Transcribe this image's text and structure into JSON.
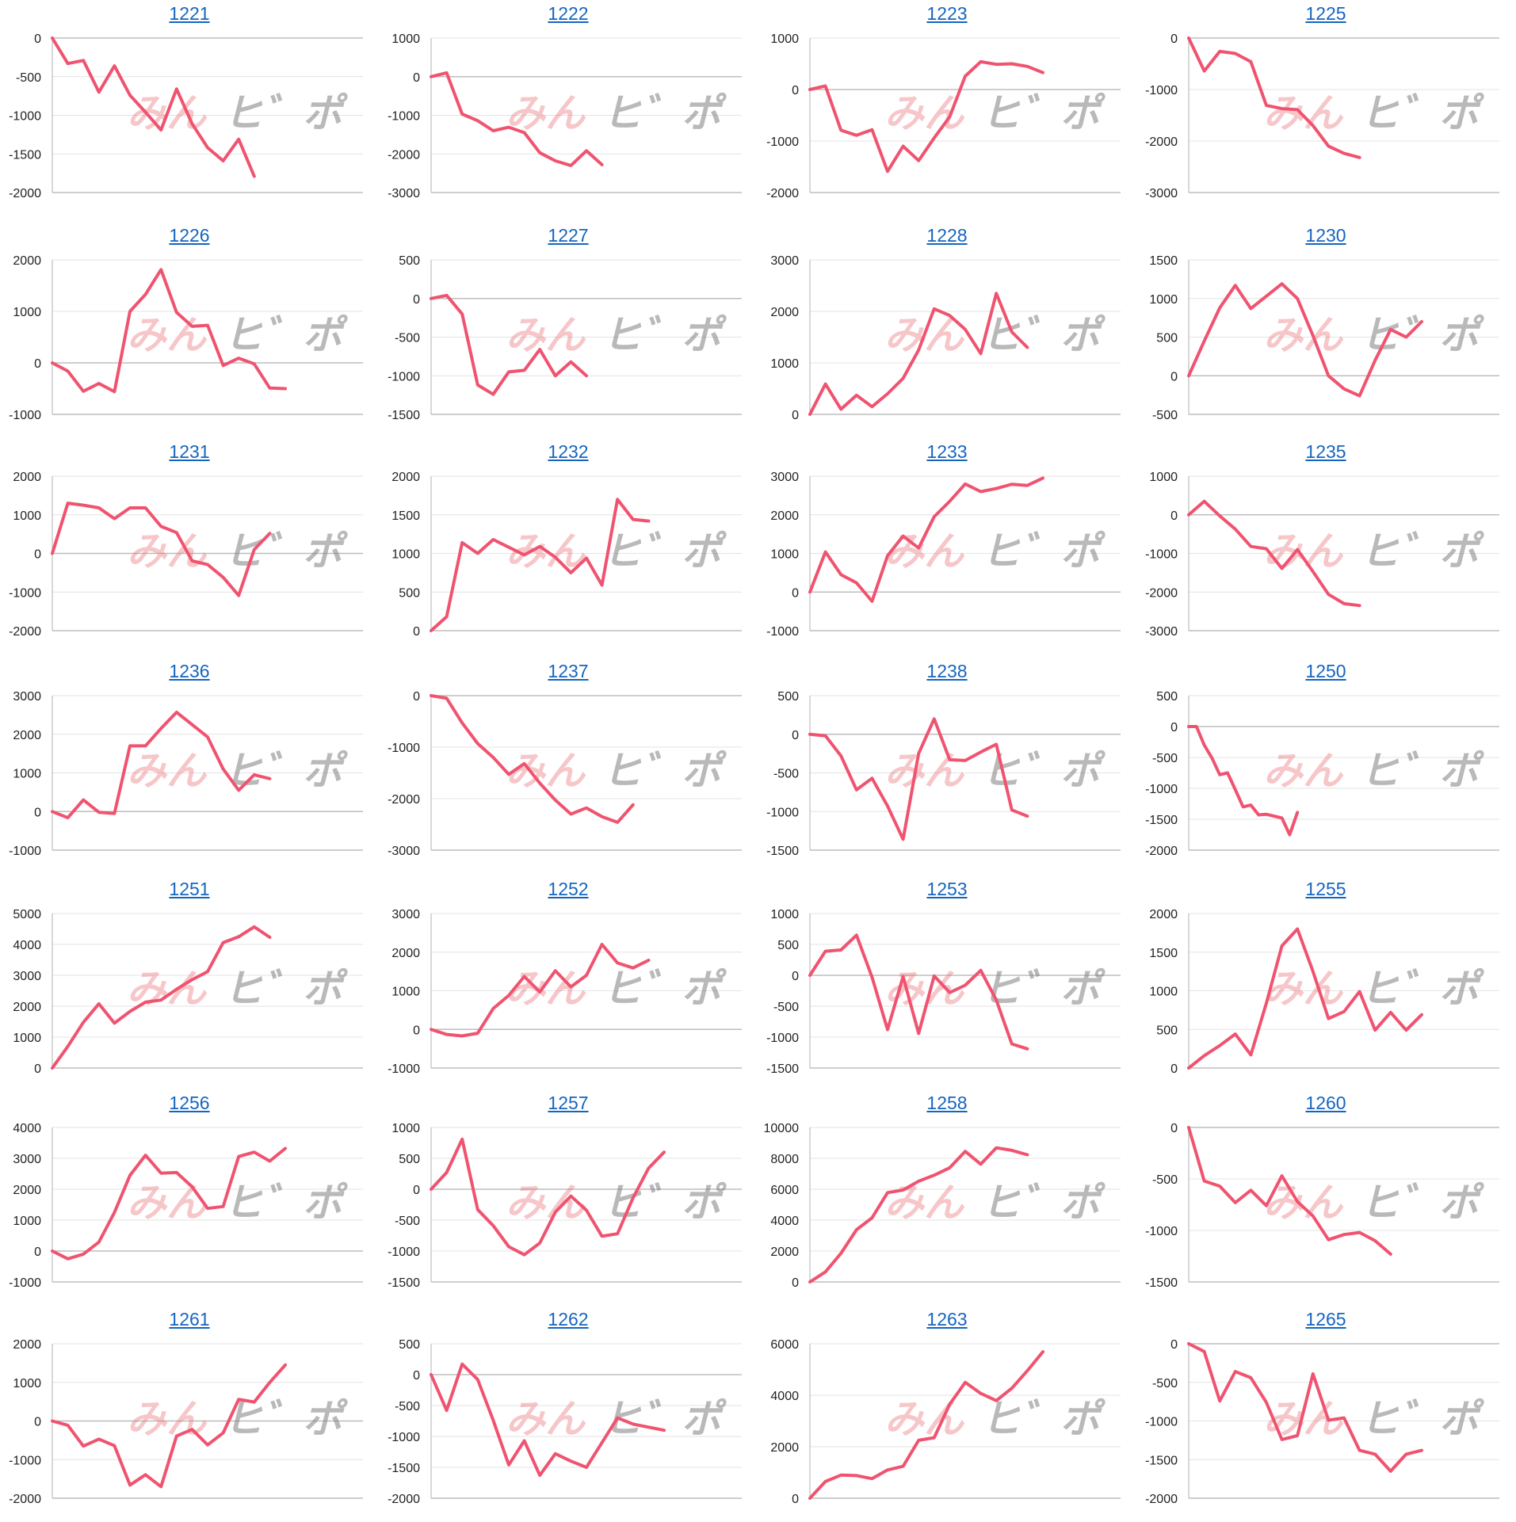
{
  "colors": {
    "line": "#f0536f",
    "grid": "#e3e3e3",
    "axis": "#bdbdbd",
    "link": "#1565c0",
    "wm1": "rgba(231,104,112,0.38)",
    "wm2": "rgba(128,128,128,0.55)"
  },
  "watermark": {
    "part1": "みん",
    "part2": "ヒ゛ポ"
  },
  "chart_data": [
    {
      "title": "1221",
      "type": "line",
      "ylim": [
        -2000,
        0
      ],
      "yticks": [
        0,
        -500,
        -1000,
        -1500,
        -2000
      ],
      "x_max": 20,
      "values": [
        0,
        -330,
        -290,
        -700,
        -360,
        -740,
        -960,
        -1190,
        -660,
        -1110,
        -1420,
        -1590,
        -1310,
        -1790
      ]
    },
    {
      "title": "1222",
      "type": "line",
      "ylim": [
        -3000,
        1000
      ],
      "yticks": [
        1000,
        0,
        -1000,
        -2000,
        -3000
      ],
      "x_max": 20,
      "values": [
        0,
        100,
        -970,
        -1140,
        -1400,
        -1310,
        -1450,
        -1970,
        -2180,
        -2300,
        -1920,
        -2280
      ]
    },
    {
      "title": "1223",
      "type": "line",
      "ylim": [
        -2000,
        1000
      ],
      "yticks": [
        1000,
        0,
        -1000,
        -2000
      ],
      "x_max": 20,
      "values": [
        0,
        70,
        -790,
        -890,
        -780,
        -1590,
        -1100,
        -1380,
        -940,
        -530,
        260,
        540,
        490,
        500,
        450,
        330
      ]
    },
    {
      "title": "1225",
      "type": "line",
      "ylim": [
        -3000,
        0
      ],
      "yticks": [
        0,
        -1000,
        -2000,
        -3000
      ],
      "x_max": 20,
      "values": [
        0,
        -640,
        -260,
        -300,
        -460,
        -1310,
        -1370,
        -1390,
        -1700,
        -2100,
        -2240,
        -2320
      ]
    },
    {
      "title": "1226",
      "type": "line",
      "ylim": [
        -1000,
        2000
      ],
      "yticks": [
        2000,
        1000,
        0,
        -1000
      ],
      "x_max": 20,
      "values": [
        0,
        -160,
        -550,
        -400,
        -560,
        1000,
        1330,
        1810,
        980,
        710,
        730,
        -50,
        90,
        -20,
        -490,
        -500
      ]
    },
    {
      "title": "1227",
      "type": "line",
      "ylim": [
        -1500,
        500
      ],
      "yticks": [
        500,
        0,
        -500,
        -1000,
        -1500
      ],
      "x_max": 20,
      "values": [
        0,
        40,
        -200,
        -1120,
        -1240,
        -950,
        -930,
        -660,
        -1000,
        -820,
        -1000
      ]
    },
    {
      "title": "1228",
      "type": "line",
      "ylim": [
        0,
        3000
      ],
      "yticks": [
        3000,
        2000,
        1000,
        0
      ],
      "x_max": 20,
      "values": [
        0,
        590,
        100,
        370,
        150,
        400,
        700,
        1250,
        2050,
        1920,
        1650,
        1180,
        2350,
        1600,
        1300
      ]
    },
    {
      "title": "1230",
      "type": "line",
      "ylim": [
        -500,
        1500
      ],
      "yticks": [
        1500,
        1000,
        500,
        0,
        -500
      ],
      "x_max": 20,
      "values": [
        0,
        450,
        880,
        1170,
        870,
        1030,
        1190,
        1000,
        520,
        0,
        -170,
        -260,
        200,
        600,
        500,
        700
      ]
    },
    {
      "title": "1231",
      "type": "line",
      "ylim": [
        -2000,
        2000
      ],
      "yticks": [
        2000,
        1000,
        0,
        -1000,
        -2000
      ],
      "x_max": 20,
      "values": [
        0,
        1300,
        1250,
        1180,
        900,
        1180,
        1180,
        700,
        540,
        -190,
        -290,
        -620,
        -1090,
        100,
        520
      ]
    },
    {
      "title": "1232",
      "type": "line",
      "ylim": [
        0,
        2000
      ],
      "yticks": [
        2000,
        1500,
        1000,
        500,
        0
      ],
      "x_max": 20,
      "values": [
        0,
        180,
        1140,
        1000,
        1180,
        1080,
        980,
        1090,
        950,
        750,
        940,
        590,
        1700,
        1440,
        1420
      ]
    },
    {
      "title": "1233",
      "type": "line",
      "ylim": [
        -1000,
        3000
      ],
      "yticks": [
        3000,
        2000,
        1000,
        0,
        -1000
      ],
      "x_max": 20,
      "values": [
        0,
        1040,
        450,
        240,
        -240,
        940,
        1450,
        1140,
        1950,
        2350,
        2800,
        2600,
        2680,
        2790,
        2760,
        2950
      ]
    },
    {
      "title": "1235",
      "type": "line",
      "ylim": [
        -3000,
        1000
      ],
      "yticks": [
        1000,
        0,
        -1000,
        -2000,
        -3000
      ],
      "x_max": 20,
      "values": [
        0,
        350,
        -30,
        -370,
        -820,
        -880,
        -1390,
        -900,
        -1470,
        -2060,
        -2300,
        -2350
      ]
    },
    {
      "title": "1236",
      "type": "line",
      "ylim": [
        -1000,
        3000
      ],
      "yticks": [
        3000,
        2000,
        1000,
        0,
        -1000
      ],
      "x_max": 20,
      "values": [
        0,
        -160,
        300,
        -20,
        -50,
        1700,
        1700,
        2150,
        2570,
        2250,
        1930,
        1100,
        550,
        950,
        850
      ]
    },
    {
      "title": "1237",
      "type": "line",
      "ylim": [
        -3000,
        0
      ],
      "yticks": [
        0,
        -1000,
        -2000,
        -3000
      ],
      "x_max": 20,
      "values": [
        0,
        -50,
        -530,
        -930,
        -1200,
        -1530,
        -1320,
        -1700,
        -2030,
        -2300,
        -2180,
        -2350,
        -2460,
        -2120
      ]
    },
    {
      "title": "1238",
      "type": "line",
      "ylim": [
        -1500,
        500
      ],
      "yticks": [
        500,
        0,
        -500,
        -1000,
        -1500
      ],
      "x_max": 20,
      "values": [
        0,
        -20,
        -280,
        -720,
        -570,
        -930,
        -1360,
        -250,
        200,
        -330,
        -340,
        -230,
        -130,
        -980,
        -1060
      ]
    },
    {
      "title": "1250",
      "type": "line",
      "ylim": [
        -2000,
        500
      ],
      "yticks": [
        500,
        0,
        -500,
        -1000,
        -1500,
        -2000
      ],
      "x_max": 40,
      "values": [
        0,
        0,
        -300,
        -510,
        -780,
        -750,
        -1020,
        -1300,
        -1270,
        -1430,
        -1420,
        -1450,
        -1480,
        -1750,
        -1390
      ]
    },
    {
      "title": "1251",
      "type": "line",
      "ylim": [
        0,
        5000
      ],
      "yticks": [
        5000,
        4000,
        3000,
        2000,
        1000,
        0
      ],
      "x_max": 20,
      "values": [
        0,
        700,
        1480,
        2080,
        1450,
        1830,
        2130,
        2200,
        2550,
        2860,
        3120,
        4060,
        4250,
        4570,
        4230
      ]
    },
    {
      "title": "1252",
      "type": "line",
      "ylim": [
        -1000,
        3000
      ],
      "yticks": [
        3000,
        2000,
        1000,
        0,
        -1000
      ],
      "x_max": 20,
      "values": [
        0,
        -130,
        -170,
        -100,
        540,
        880,
        1370,
        970,
        1520,
        1100,
        1400,
        2200,
        1720,
        1590,
        1790
      ]
    },
    {
      "title": "1253",
      "type": "line",
      "ylim": [
        -1500,
        1000
      ],
      "yticks": [
        1000,
        500,
        0,
        -500,
        -1000,
        -1500
      ],
      "x_max": 20,
      "values": [
        0,
        390,
        410,
        650,
        -30,
        -880,
        -20,
        -940,
        -10,
        -280,
        -160,
        80,
        -400,
        -1110,
        -1190
      ]
    },
    {
      "title": "1255",
      "type": "line",
      "ylim": [
        0,
        2000
      ],
      "yticks": [
        2000,
        1500,
        1000,
        500,
        0
      ],
      "x_max": 20,
      "values": [
        0,
        160,
        290,
        440,
        170,
        840,
        1580,
        1800,
        1250,
        640,
        730,
        990,
        490,
        720,
        490,
        690
      ]
    },
    {
      "title": "1256",
      "type": "line",
      "ylim": [
        -1000,
        4000
      ],
      "yticks": [
        4000,
        3000,
        2000,
        1000,
        0,
        -1000
      ],
      "x_max": 20,
      "values": [
        0,
        -250,
        -100,
        290,
        1250,
        2450,
        3100,
        2520,
        2540,
        2080,
        1380,
        1440,
        3060,
        3200,
        2910,
        3320
      ]
    },
    {
      "title": "1257",
      "type": "line",
      "ylim": [
        -1500,
        1000
      ],
      "yticks": [
        1000,
        500,
        0,
        -500,
        -1000,
        -1500
      ],
      "x_max": 20,
      "values": [
        0,
        270,
        810,
        -330,
        -590,
        -930,
        -1060,
        -870,
        -370,
        -110,
        -340,
        -760,
        -720,
        -140,
        340,
        600
      ]
    },
    {
      "title": "1258",
      "type": "line",
      "ylim": [
        0,
        10000
      ],
      "yticks": [
        10000,
        8000,
        6000,
        4000,
        2000,
        0
      ],
      "x_max": 20,
      "values": [
        0,
        650,
        1850,
        3380,
        4150,
        5780,
        5950,
        6520,
        6910,
        7390,
        8450,
        7620,
        8680,
        8520,
        8230
      ]
    },
    {
      "title": "1260",
      "type": "line",
      "ylim": [
        -1500,
        0
      ],
      "yticks": [
        0,
        -500,
        -1000,
        -1500
      ],
      "x_max": 20,
      "values": [
        0,
        -520,
        -570,
        -730,
        -610,
        -760,
        -470,
        -720,
        -860,
        -1090,
        -1040,
        -1020,
        -1100,
        -1230
      ]
    },
    {
      "title": "1261",
      "type": "line",
      "ylim": [
        -2000,
        2000
      ],
      "yticks": [
        2000,
        1000,
        0,
        -1000,
        -2000
      ],
      "x_max": 20,
      "values": [
        0,
        -110,
        -650,
        -470,
        -640,
        -1660,
        -1390,
        -1700,
        -390,
        -220,
        -620,
        -310,
        560,
        490,
        1000,
        1450
      ]
    },
    {
      "title": "1262",
      "type": "line",
      "ylim": [
        -2000,
        500
      ],
      "yticks": [
        500,
        0,
        -500,
        -1000,
        -1500,
        -2000
      ],
      "x_max": 20,
      "values": [
        0,
        -580,
        170,
        -80,
        -740,
        -1460,
        -1070,
        -1630,
        -1280,
        -1400,
        -1500,
        -1100,
        -700,
        -800,
        -850,
        -900
      ]
    },
    {
      "title": "1263",
      "type": "line",
      "ylim": [
        0,
        6000
      ],
      "yticks": [
        6000,
        4000,
        2000,
        0
      ],
      "x_max": 20,
      "values": [
        0,
        650,
        900,
        880,
        760,
        1100,
        1240,
        2250,
        2350,
        3650,
        4500,
        4070,
        3790,
        4270,
        4950,
        5690
      ]
    },
    {
      "title": "1265",
      "type": "line",
      "ylim": [
        -2000,
        0
      ],
      "yticks": [
        0,
        -500,
        -1000,
        -1500,
        -2000
      ],
      "x_max": 20,
      "values": [
        0,
        -100,
        -740,
        -360,
        -440,
        -760,
        -1240,
        -1190,
        -390,
        -990,
        -960,
        -1380,
        -1430,
        -1650,
        -1430,
        -1380
      ]
    }
  ]
}
